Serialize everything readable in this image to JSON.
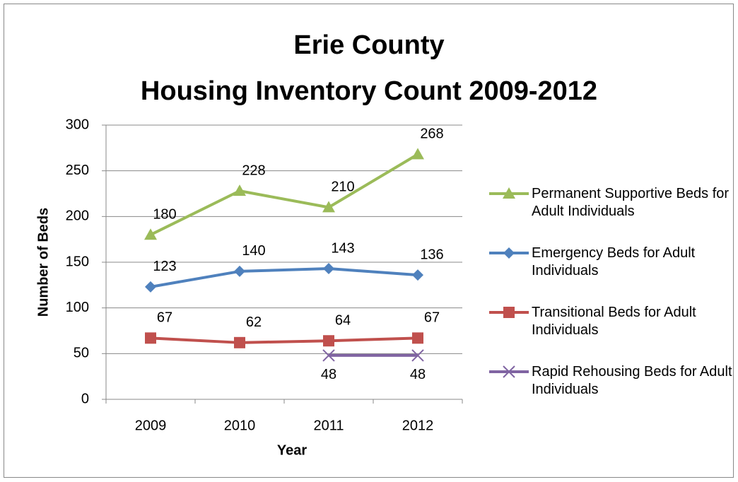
{
  "chart_data": {
    "type": "line",
    "title": [
      "Erie County",
      "Housing Inventory Count 2009-2012"
    ],
    "xlabel": "Year",
    "ylabel": "Number of Beds",
    "categories": [
      "2009",
      "2010",
      "2011",
      "2012"
    ],
    "series": [
      {
        "name": "Permanent Supportive Beds for Adult Individuals",
        "color": "#9bbb59",
        "marker": "triangle",
        "values": [
          180,
          228,
          210,
          268
        ]
      },
      {
        "name": "Emergency Beds for Adult Individuals",
        "color": "#4f81bd",
        "marker": "diamond",
        "values": [
          123,
          140,
          143,
          136
        ]
      },
      {
        "name": "Transitional Beds for Adult Individuals",
        "color": "#c0504d",
        "marker": "square",
        "values": [
          67,
          62,
          64,
          67
        ]
      },
      {
        "name": "Rapid Rehousing Beds for Adult Individuals",
        "color": "#8064a2",
        "marker": "x",
        "values": [
          null,
          null,
          48,
          48
        ]
      }
    ],
    "ylim": [
      0,
      300
    ],
    "yticks": [
      0,
      50,
      100,
      150,
      200,
      250,
      300
    ],
    "grid": true,
    "legend": "right"
  }
}
